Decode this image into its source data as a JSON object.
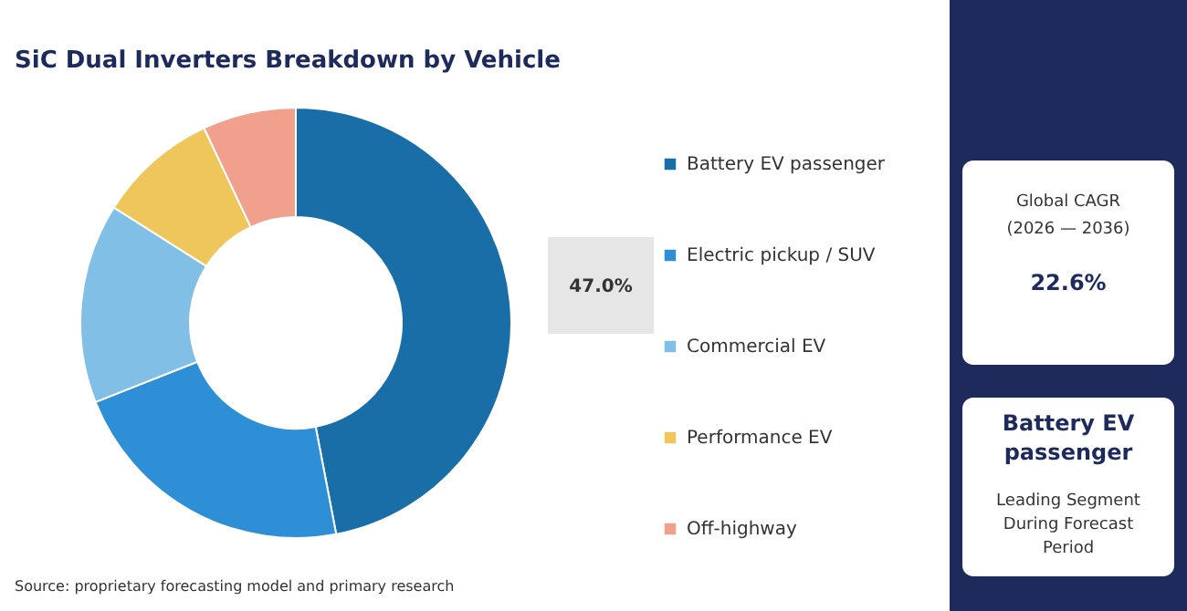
{
  "chart_data": {
    "type": "donut",
    "title": "SiC Dual Inverters Breakdown by Vehicle",
    "categories": [
      "Battery EV passenger",
      "Electric pickup / SUV",
      "Commercial EV",
      "Performance EV",
      "Off-highway"
    ],
    "values": [
      47.0,
      22,
      15,
      9,
      7
    ],
    "value_labels": [
      "47.0%",
      null,
      null,
      null,
      null
    ],
    "colors": [
      "#1a6ea8",
      "#2e8fd6",
      "#82bfe6",
      "#efc65c",
      "#f0a08c"
    ],
    "legend": "right",
    "annotations": [
      "Source: proprietary forecasting model and primary research",
      "Global CAGR",
      "(2026 — 2036)",
      "22.6%",
      "Battery EV passenger",
      "Leading Segment During Forecast Period"
    ]
  }
}
